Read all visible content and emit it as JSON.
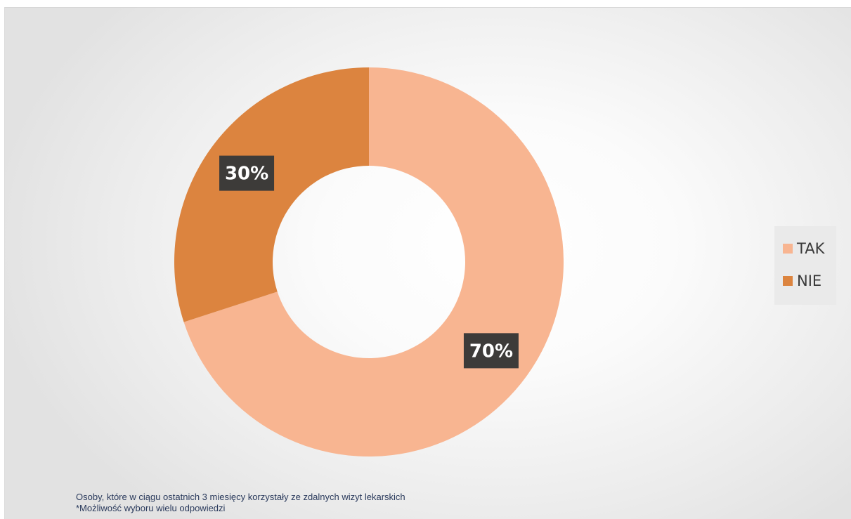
{
  "chart_data": {
    "type": "pie",
    "subtype": "donut",
    "categories": [
      "TAK",
      "NIE"
    ],
    "values": [
      70,
      30
    ],
    "data_labels": [
      "70%",
      "30%"
    ],
    "colors": [
      "#F8B591",
      "#DC843F"
    ],
    "legend_position": "right",
    "title": ""
  },
  "legend": {
    "items": [
      {
        "label": "TAK",
        "color": "#F8B591"
      },
      {
        "label": "NIE",
        "color": "#DC843F"
      }
    ]
  },
  "footnote": {
    "line1": "Osoby, które w ciągu ostatnich 3 miesięcy korzystały ze zdalnych wizyt lekarskich",
    "line2": "*Możliwość wyboru wielu odpowiedzi"
  }
}
